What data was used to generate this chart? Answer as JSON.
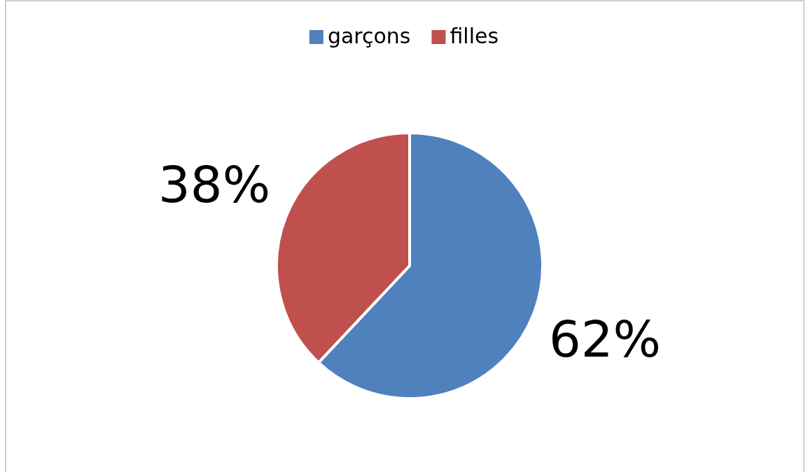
{
  "chart_data": {
    "type": "pie",
    "categories": [
      "garçons",
      "filles"
    ],
    "values": [
      62,
      38
    ],
    "colors": [
      "#4f81bd",
      "#c0504d"
    ],
    "value_labels": [
      "62%",
      "38%"
    ],
    "legend": "top"
  }
}
